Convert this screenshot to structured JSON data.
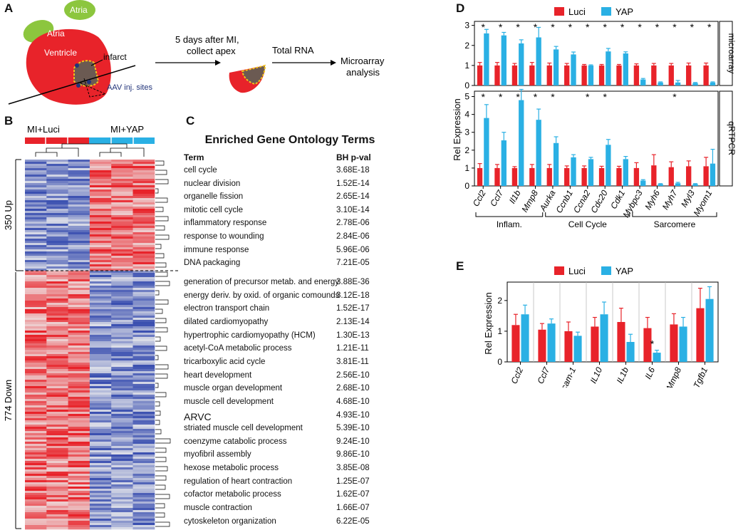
{
  "panel_labels": {
    "a": "A",
    "b": "B",
    "c": "C",
    "d": "D",
    "e": "E"
  },
  "panel_a": {
    "atria_left": "Atria",
    "atria_right": "Atria",
    "ventricle": "Ventricle",
    "infarct": "infarct",
    "aav_sites": "AAV inj. sites",
    "step1_line1": "5 days after MI,",
    "step1_line2": "collect apex",
    "total_rna": "Total RNA",
    "microarray_line1": "Microarray",
    "microarray_line2": "analysis"
  },
  "panel_b": {
    "group_luci": "MI+Luci",
    "group_yap": "MI+YAP",
    "up_label": "350 Up",
    "down_label": "774 Down"
  },
  "panel_c": {
    "title": "Enriched Gene Ontology Terms",
    "col_term": "Term",
    "col_p": "BH p-val",
    "up_terms": [
      {
        "term": "cell cycle",
        "p": "3.68E-18"
      },
      {
        "term": "nuclear division",
        "p": "1.52E-14"
      },
      {
        "term": "organelle fission",
        "p": "2.65E-14"
      },
      {
        "term": "mitotic cell cycle",
        "p": "3.10E-14"
      },
      {
        "term": "inflammatory response",
        "p": "2.78E-06"
      },
      {
        "term": "response to wounding",
        "p": "2.84E-06"
      },
      {
        "term": "immune response",
        "p": "5.96E-06"
      },
      {
        "term": "DNA packaging",
        "p": "7.21E-05"
      }
    ],
    "down_terms": [
      {
        "term": "generation of precursor metab. and energy",
        "p": "3.88E-36"
      },
      {
        "term": "energy deriv. by oxid. of organic comounds",
        "p": "3.12E-18"
      },
      {
        "term": "electron transport chain",
        "p": "1.52E-17"
      },
      {
        "term": "dilated cardiomyopathy",
        "p": "2.13E-14"
      },
      {
        "term": "hypertrophic cardiomyopathy (HCM)",
        "p": "1.30E-13"
      },
      {
        "term": "acetyl-CoA metabolic process",
        "p": "1.21E-11"
      },
      {
        "term": "tricarboxylic acid cycle",
        "p": "3.81E-11"
      },
      {
        "term": "heart development",
        "p": "2.56E-10"
      },
      {
        "term": "muscle organ development",
        "p": "2.68E-10"
      },
      {
        "term": "muscle cell development",
        "p": "4.68E-10"
      },
      {
        "term": "ARVC",
        "p": "4.93E-10"
      },
      {
        "term": "striated muscle cell development",
        "p": "5.39E-10"
      },
      {
        "term": "coenzyme catabolic process",
        "p": "9.24E-10"
      },
      {
        "term": "myofibril assembly",
        "p": "9.86E-10"
      },
      {
        "term": "hexose metabolic process",
        "p": "3.85E-08"
      },
      {
        "term": "regulation of heart contraction",
        "p": "1.25E-07"
      },
      {
        "term": "cofactor metabolic process",
        "p": "1.62E-07"
      },
      {
        "term": "muscle contraction",
        "p": "1.66E-07"
      },
      {
        "term": "cytoskeleton organization",
        "p": "6.22E-05"
      }
    ]
  },
  "colors": {
    "luci": "#e8232a",
    "yap": "#2ab0e4",
    "heart": "#e8232a",
    "atria": "#8cc63e",
    "infarct": "#6b5a52",
    "heat_red": "#e8232a",
    "heat_blue": "#3a4fb0"
  },
  "chart_data": [
    {
      "id": "D-microarray",
      "type": "bar",
      "title": "",
      "strip_label": "microarray",
      "ylabel": "Rel Expression",
      "ylim": [
        0,
        3.2
      ],
      "yticks": [
        "0",
        "1",
        "2",
        "3"
      ],
      "legend": [
        "Luci",
        "YAP"
      ],
      "categories": [
        "Ccl2",
        "Ccl7",
        "Il1b",
        "Mmp8",
        "Aurka",
        "Ccnb1",
        "Ccna2",
        "Cdc20",
        "Cdk1",
        "Mybpc3",
        "Myh6",
        "Myh7",
        "Myl3",
        "Myom1"
      ],
      "series": [
        {
          "name": "Luci",
          "values": [
            1,
            1,
            1,
            1,
            1,
            1,
            1,
            1,
            1,
            1,
            1,
            1,
            1,
            1
          ],
          "errors": [
            0.15,
            0.15,
            0.1,
            0.15,
            0.12,
            0.1,
            0.05,
            0.05,
            0.05,
            0.08,
            0.1,
            0.1,
            0.12,
            0.12
          ]
        },
        {
          "name": "YAP",
          "values": [
            2.6,
            2.5,
            2.1,
            2.4,
            1.8,
            1.55,
            1.0,
            1.7,
            1.6,
            0.3,
            0.15,
            0.15,
            0.12,
            0.15
          ],
          "errors": [
            0.2,
            0.15,
            0.18,
            0.5,
            0.15,
            0.12,
            0.03,
            0.15,
            0.08,
            0.05,
            0.03,
            0.1,
            0.03,
            0.03
          ]
        }
      ],
      "significance": [
        "*",
        "*",
        "*",
        "*",
        "*",
        "*",
        "*",
        "*",
        "*",
        "*",
        "*",
        "*",
        "*",
        "*"
      ]
    },
    {
      "id": "D-qRTPCR",
      "type": "bar",
      "title": "",
      "strip_label": "qRTPCR",
      "ylabel": "Rel Expression",
      "ylim": [
        0,
        5.3
      ],
      "yticks": [
        "0",
        "1",
        "2",
        "3",
        "4",
        "5"
      ],
      "categories": [
        "Ccl2",
        "Ccl7",
        "Il1b",
        "Mmp8",
        "Aurka",
        "Ccnb1",
        "Ccna2",
        "Cdc20",
        "Cdk1",
        "Mybpc3",
        "Myh6",
        "Myh7",
        "Myl3",
        "Myom1"
      ],
      "series": [
        {
          "name": "Luci",
          "values": [
            1.0,
            1.0,
            1.0,
            1.0,
            1.0,
            1.0,
            1.0,
            1.0,
            1.0,
            1.0,
            1.15,
            1.05,
            1.1,
            1.1
          ],
          "errors": [
            0.25,
            0.2,
            0.08,
            0.2,
            0.2,
            0.12,
            0.12,
            0.1,
            0.1,
            0.3,
            0.6,
            0.3,
            0.3,
            0.5
          ]
        },
        {
          "name": "YAP",
          "values": [
            3.8,
            2.55,
            4.8,
            3.7,
            2.4,
            1.6,
            1.5,
            2.3,
            1.5,
            0.3,
            0.1,
            0.15,
            0.1,
            1.25
          ],
          "errors": [
            0.75,
            0.45,
            0.6,
            0.6,
            0.35,
            0.15,
            0.1,
            0.3,
            0.15,
            0.05,
            0.03,
            0.05,
            0.03,
            0.8
          ]
        }
      ],
      "significance": [
        "*",
        "*",
        "*",
        "*",
        "*",
        "",
        "*",
        "*",
        "",
        "",
        "",
        "*",
        "",
        ""
      ],
      "groups": [
        {
          "label": "Inflam.",
          "from": 0,
          "to": 3
        },
        {
          "label": "Cell Cycle",
          "from": 4,
          "to": 8
        },
        {
          "label": "Sarcomere",
          "from": 9,
          "to": 13
        }
      ]
    },
    {
      "id": "E",
      "type": "bar",
      "title": "",
      "ylabel": "Rel Expression",
      "ylim": [
        0,
        2.6
      ],
      "yticks": [
        "0",
        "1",
        "2"
      ],
      "legend": [
        "Luci",
        "YAP"
      ],
      "categories": [
        "Ccl2",
        "Ccl7",
        "Icam-1",
        "IL10",
        "IL1b",
        "IL6",
        "Mmp8",
        "Tgfb1"
      ],
      "series": [
        {
          "name": "Luci",
          "values": [
            1.2,
            1.05,
            1.0,
            1.15,
            1.3,
            1.1,
            1.22,
            1.75
          ],
          "errors": [
            0.35,
            0.2,
            0.3,
            0.3,
            0.45,
            0.35,
            0.35,
            0.65
          ]
        },
        {
          "name": "YAP",
          "values": [
            1.55,
            1.25,
            0.85,
            1.55,
            0.65,
            0.3,
            1.15,
            2.05
          ],
          "errors": [
            0.3,
            0.15,
            0.12,
            0.4,
            0.25,
            0.08,
            0.3,
            0.4
          ]
        }
      ],
      "significance": [
        "",
        "",
        "",
        "",
        "",
        "*",
        "",
        ""
      ]
    }
  ]
}
